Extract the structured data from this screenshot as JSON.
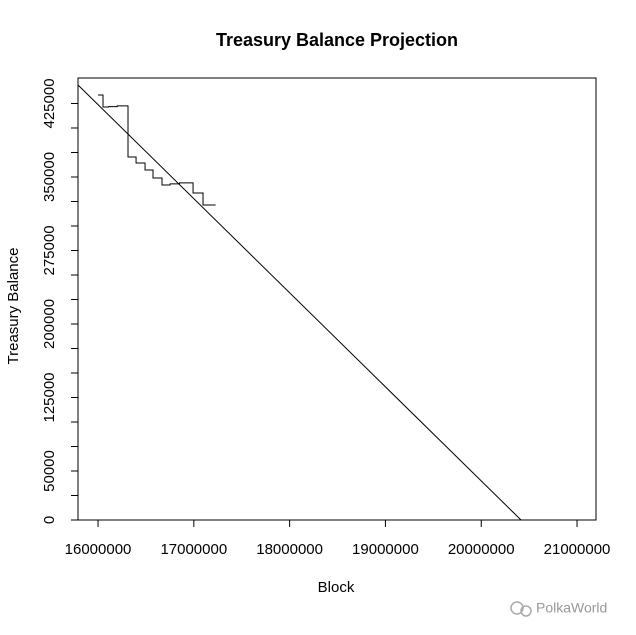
{
  "chart_data": {
    "type": "line",
    "title": "Treasury Balance Projection",
    "xlabel": "Block",
    "ylabel": "Treasury Balance",
    "xlim": [
      15791000,
      21198000
    ],
    "ylim": [
      0,
      451000
    ],
    "xticks": [
      16000000,
      17000000,
      18000000,
      19000000,
      20000000,
      21000000
    ],
    "yticks": [
      0,
      50000,
      125000,
      200000,
      275000,
      350000,
      425000
    ],
    "yminorticks": [
      25000,
      75000,
      100000,
      150000,
      175000,
      225000,
      250000,
      300000,
      325000,
      375000,
      400000
    ],
    "series": [
      {
        "color": "#000000",
        "step": true,
        "x": [
          16000000,
          16052000,
          16110000,
          16200000,
          16313000,
          16397000,
          16491000,
          16574000,
          16668000,
          16752000,
          16850000,
          16992000,
          17096000,
          17221000
        ],
        "values": [
          433700,
          421400,
          421800,
          422600,
          370400,
          364300,
          357100,
          349000,
          341800,
          343000,
          344000,
          333700,
          321400,
          322000
        ]
      },
      {
        "color": "#000000",
        "x": [
          15791000,
          20415500
        ],
        "values": [
          443900,
          0
        ]
      }
    ],
    "watermark": "PolkaWorld"
  }
}
